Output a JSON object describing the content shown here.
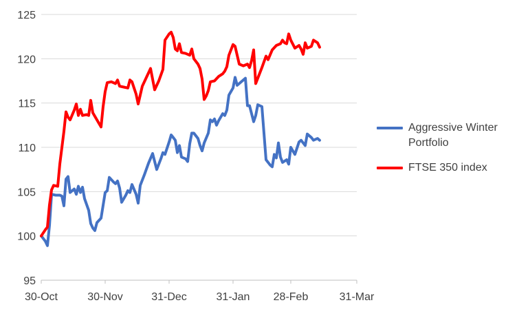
{
  "chart_data": {
    "type": "line",
    "title": "",
    "xlabel": "",
    "ylabel": "",
    "ylim": [
      95,
      125
    ],
    "yticks": [
      95,
      100,
      105,
      110,
      115,
      120,
      125
    ],
    "xlim": [
      "2023-10-30",
      "2024-03-31"
    ],
    "xticks": [
      {
        "date": "2023-10-30",
        "label": "30-Oct"
      },
      {
        "date": "2023-11-30",
        "label": "30-Nov"
      },
      {
        "date": "2023-12-31",
        "label": "31-Dec"
      },
      {
        "date": "2024-01-31",
        "label": "31-Jan"
      },
      {
        "date": "2024-02-28",
        "label": "28-Feb"
      },
      {
        "date": "2024-03-31",
        "label": "31-Mar"
      }
    ],
    "grid": {
      "horizontal": true,
      "vertical": false
    },
    "legend_position": "right",
    "series": [
      {
        "name": "Aggressive Winter Portfolio",
        "color": "#4472C4",
        "points": [
          [
            "2023-10-30",
            100.0
          ],
          [
            "2023-11-01",
            99.4
          ],
          [
            "2023-11-02",
            98.9
          ],
          [
            "2023-11-03",
            101.2
          ],
          [
            "2023-11-04",
            104.7
          ],
          [
            "2023-11-06",
            104.6
          ],
          [
            "2023-11-08",
            104.6
          ],
          [
            "2023-11-09",
            104.5
          ],
          [
            "2023-11-10",
            103.4
          ],
          [
            "2023-11-11",
            106.4
          ],
          [
            "2023-11-12",
            106.7
          ],
          [
            "2023-11-13",
            104.9
          ],
          [
            "2023-11-15",
            105.3
          ],
          [
            "2023-11-16",
            104.7
          ],
          [
            "2023-11-17",
            105.6
          ],
          [
            "2023-11-18",
            104.9
          ],
          [
            "2023-11-19",
            105.5
          ],
          [
            "2023-11-20",
            104.2
          ],
          [
            "2023-11-22",
            102.9
          ],
          [
            "2023-11-23",
            101.4
          ],
          [
            "2023-11-24",
            100.9
          ],
          [
            "2023-11-25",
            100.6
          ],
          [
            "2023-11-26",
            101.5
          ],
          [
            "2023-11-28",
            102.0
          ],
          [
            "2023-11-30",
            104.9
          ],
          [
            "2023-12-01",
            105.1
          ],
          [
            "2023-12-02",
            106.6
          ],
          [
            "2023-12-04",
            106.1
          ],
          [
            "2023-12-05",
            105.9
          ],
          [
            "2023-12-06",
            106.2
          ],
          [
            "2023-12-07",
            105.4
          ],
          [
            "2023-12-08",
            103.8
          ],
          [
            "2023-12-10",
            104.6
          ],
          [
            "2023-12-11",
            105.1
          ],
          [
            "2023-12-12",
            104.9
          ],
          [
            "2023-12-13",
            105.8
          ],
          [
            "2023-12-15",
            104.7
          ],
          [
            "2023-12-16",
            103.7
          ],
          [
            "2023-12-17",
            105.7
          ],
          [
            "2023-12-19",
            106.9
          ],
          [
            "2023-12-21",
            108.2
          ],
          [
            "2023-12-23",
            109.3
          ],
          [
            "2023-12-25",
            107.5
          ],
          [
            "2023-12-27",
            108.7
          ],
          [
            "2023-12-28",
            109.4
          ],
          [
            "2023-12-29",
            109.2
          ],
          [
            "2023-12-31",
            110.6
          ],
          [
            "2024-01-01",
            111.4
          ],
          [
            "2024-01-02",
            111.1
          ],
          [
            "2024-01-03",
            110.8
          ],
          [
            "2024-01-04",
            109.4
          ],
          [
            "2024-01-05",
            110.2
          ],
          [
            "2024-01-06",
            108.9
          ],
          [
            "2024-01-08",
            108.7
          ],
          [
            "2024-01-09",
            108.4
          ],
          [
            "2024-01-10",
            110.4
          ],
          [
            "2024-01-11",
            111.6
          ],
          [
            "2024-01-12",
            111.6
          ],
          [
            "2024-01-14",
            111.0
          ],
          [
            "2024-01-15",
            110.2
          ],
          [
            "2024-01-16",
            109.6
          ],
          [
            "2024-01-17",
            110.5
          ],
          [
            "2024-01-19",
            111.6
          ],
          [
            "2024-01-20",
            113.1
          ],
          [
            "2024-01-21",
            112.9
          ],
          [
            "2024-01-22",
            113.2
          ],
          [
            "2024-01-23",
            112.5
          ],
          [
            "2024-01-24",
            113.0
          ],
          [
            "2024-01-26",
            113.8
          ],
          [
            "2024-01-27",
            113.6
          ],
          [
            "2024-01-28",
            114.2
          ],
          [
            "2024-01-29",
            115.9
          ],
          [
            "2024-01-31",
            116.7
          ],
          [
            "2024-02-01",
            117.9
          ],
          [
            "2024-02-02",
            117.0
          ],
          [
            "2024-02-03",
            117.2
          ],
          [
            "2024-02-04",
            117.4
          ],
          [
            "2024-02-06",
            117.8
          ],
          [
            "2024-02-07",
            114.7
          ],
          [
            "2024-02-08",
            114.7
          ],
          [
            "2024-02-10",
            112.9
          ],
          [
            "2024-02-11",
            113.6
          ],
          [
            "2024-02-12",
            114.8
          ],
          [
            "2024-02-14",
            114.6
          ],
          [
            "2024-02-16",
            108.6
          ],
          [
            "2024-02-18",
            108.0
          ],
          [
            "2024-02-19",
            107.8
          ],
          [
            "2024-02-20",
            109.2
          ],
          [
            "2024-02-21",
            108.8
          ],
          [
            "2024-02-22",
            110.5
          ],
          [
            "2024-02-23",
            108.9
          ],
          [
            "2024-02-24",
            108.3
          ],
          [
            "2024-02-26",
            108.6
          ],
          [
            "2024-02-27",
            108.1
          ],
          [
            "2024-02-28",
            110.0
          ],
          [
            "2024-03-01",
            109.2
          ],
          [
            "2024-03-03",
            110.6
          ],
          [
            "2024-03-04",
            110.8
          ],
          [
            "2024-03-06",
            110.2
          ],
          [
            "2024-03-07",
            111.5
          ],
          [
            "2024-03-09",
            111.1
          ],
          [
            "2024-03-10",
            110.8
          ],
          [
            "2024-03-12",
            111.0
          ],
          [
            "2024-03-13",
            110.8
          ]
        ]
      },
      {
        "name": "FTSE 350 index",
        "color": "#FF0000",
        "points": [
          [
            "2023-10-30",
            100.0
          ],
          [
            "2023-11-01",
            100.7
          ],
          [
            "2023-11-02",
            101.0
          ],
          [
            "2023-11-03",
            103.5
          ],
          [
            "2023-11-04",
            105.2
          ],
          [
            "2023-11-05",
            105.7
          ],
          [
            "2023-11-07",
            105.6
          ],
          [
            "2023-11-08",
            108.1
          ],
          [
            "2023-11-10",
            111.8
          ],
          [
            "2023-11-11",
            114.0
          ],
          [
            "2023-11-12",
            113.4
          ],
          [
            "2023-11-13",
            113.1
          ],
          [
            "2023-11-15",
            114.2
          ],
          [
            "2023-11-16",
            114.9
          ],
          [
            "2023-11-17",
            113.6
          ],
          [
            "2023-11-18",
            114.3
          ],
          [
            "2023-11-19",
            113.6
          ],
          [
            "2023-11-21",
            113.7
          ],
          [
            "2023-11-22",
            113.6
          ],
          [
            "2023-11-23",
            115.3
          ],
          [
            "2023-11-24",
            113.9
          ],
          [
            "2023-11-26",
            113.1
          ],
          [
            "2023-11-28",
            112.3
          ],
          [
            "2023-11-29",
            114.6
          ],
          [
            "2023-11-30",
            116.3
          ],
          [
            "2023-12-01",
            117.3
          ],
          [
            "2023-12-03",
            117.4
          ],
          [
            "2023-12-05",
            117.2
          ],
          [
            "2023-12-06",
            117.6
          ],
          [
            "2023-12-07",
            116.9
          ],
          [
            "2023-12-09",
            116.8
          ],
          [
            "2023-12-11",
            116.7
          ],
          [
            "2023-12-12",
            117.6
          ],
          [
            "2023-12-13",
            117.4
          ],
          [
            "2023-12-15",
            116.0
          ],
          [
            "2023-12-16",
            114.9
          ],
          [
            "2023-12-18",
            116.9
          ],
          [
            "2023-12-20",
            117.9
          ],
          [
            "2023-12-22",
            118.9
          ],
          [
            "2023-12-24",
            116.5
          ],
          [
            "2023-12-26",
            117.5
          ],
          [
            "2023-12-28",
            118.8
          ],
          [
            "2023-12-29",
            122.1
          ],
          [
            "2023-12-31",
            122.8
          ],
          [
            "2024-01-01",
            123.0
          ],
          [
            "2024-01-02",
            122.4
          ],
          [
            "2024-01-03",
            121.1
          ],
          [
            "2024-01-04",
            120.9
          ],
          [
            "2024-01-05",
            121.7
          ],
          [
            "2024-01-06",
            120.7
          ],
          [
            "2024-01-08",
            120.6
          ],
          [
            "2024-01-10",
            120.4
          ],
          [
            "2024-01-11",
            121.1
          ],
          [
            "2024-01-12",
            120.0
          ],
          [
            "2024-01-14",
            119.4
          ],
          [
            "2024-01-15",
            118.9
          ],
          [
            "2024-01-16",
            117.7
          ],
          [
            "2024-01-17",
            115.4
          ],
          [
            "2024-01-18",
            115.8
          ],
          [
            "2024-01-19",
            116.4
          ],
          [
            "2024-01-20",
            117.4
          ],
          [
            "2024-01-22",
            117.5
          ],
          [
            "2024-01-24",
            118.0
          ],
          [
            "2024-01-26",
            118.3
          ],
          [
            "2024-01-27",
            118.6
          ],
          [
            "2024-01-28",
            119.1
          ],
          [
            "2024-01-29",
            120.4
          ],
          [
            "2024-01-31",
            121.6
          ],
          [
            "2024-02-01",
            121.4
          ],
          [
            "2024-02-03",
            119.4
          ],
          [
            "2024-02-05",
            119.2
          ],
          [
            "2024-02-07",
            119.4
          ],
          [
            "2024-02-08",
            119.0
          ],
          [
            "2024-02-09",
            119.8
          ],
          [
            "2024-02-10",
            121.0
          ],
          [
            "2024-02-11",
            117.2
          ],
          [
            "2024-02-13",
            118.4
          ],
          [
            "2024-02-14",
            119.0
          ],
          [
            "2024-02-16",
            120.3
          ],
          [
            "2024-02-17",
            119.9
          ],
          [
            "2024-02-19",
            121.0
          ],
          [
            "2024-02-21",
            121.5
          ],
          [
            "2024-02-23",
            121.7
          ],
          [
            "2024-02-24",
            122.1
          ],
          [
            "2024-02-25",
            121.8
          ],
          [
            "2024-02-26",
            121.7
          ],
          [
            "2024-02-27",
            122.8
          ],
          [
            "2024-02-28",
            122.1
          ],
          [
            "2024-03-01",
            121.2
          ],
          [
            "2024-03-03",
            121.5
          ],
          [
            "2024-03-04",
            121.1
          ],
          [
            "2024-03-05",
            120.5
          ],
          [
            "2024-03-06",
            121.8
          ],
          [
            "2024-03-07",
            121.2
          ],
          [
            "2024-03-09",
            121.4
          ],
          [
            "2024-03-10",
            122.1
          ],
          [
            "2024-03-12",
            121.8
          ],
          [
            "2024-03-13",
            121.3
          ]
        ]
      }
    ]
  }
}
